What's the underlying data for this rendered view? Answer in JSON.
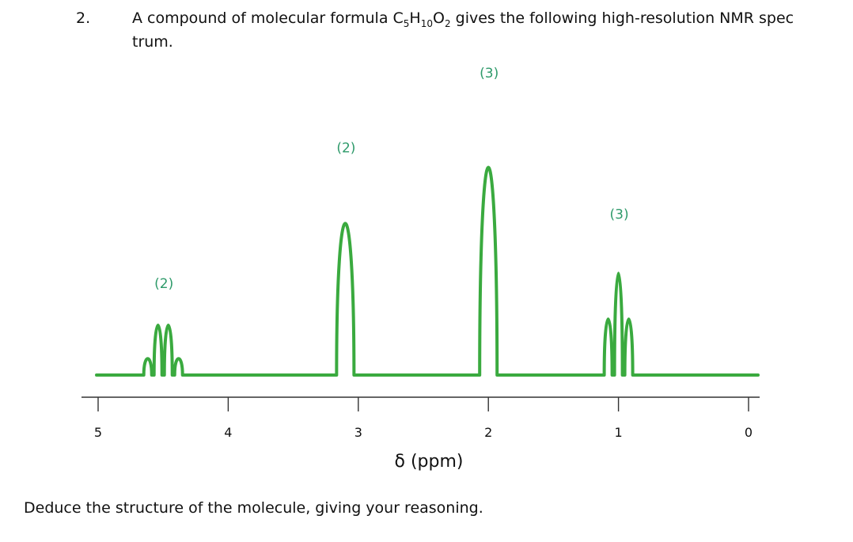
{
  "question": {
    "number": "2.",
    "text_before": "A compound of molecular formula C",
    "sub_c": "5",
    "h": "H",
    "sub_h": "10",
    "o": "O",
    "sub_o": "2",
    "text_after": " gives the following high-resolution NMR spec trum."
  },
  "footer": "Deduce the structure of the molecule, giving your reasoning.",
  "colors": {
    "spectrum": "#3aaa3f",
    "peak_label": "#2e9a6a",
    "axis": "#333333"
  },
  "chart_data": {
    "type": "line",
    "xlabel": "δ (ppm)",
    "x_ticks": [
      "5",
      "4",
      "3",
      "2",
      "1",
      "0"
    ],
    "xlim": [
      5,
      0
    ],
    "signals": [
      {
        "shift": 4.5,
        "integration_label": "(2)",
        "multiplicity": "quartet",
        "relative_height": 0.24
      },
      {
        "shift": 3.1,
        "integration_label": "(2)",
        "multiplicity": "singlet",
        "relative_height": 0.73
      },
      {
        "shift": 2.0,
        "integration_label": "(3)",
        "multiplicity": "singlet",
        "relative_height": 1.0
      },
      {
        "shift": 1.0,
        "integration_label": "(3)",
        "multiplicity": "triplet",
        "relative_height": 0.49
      }
    ]
  }
}
